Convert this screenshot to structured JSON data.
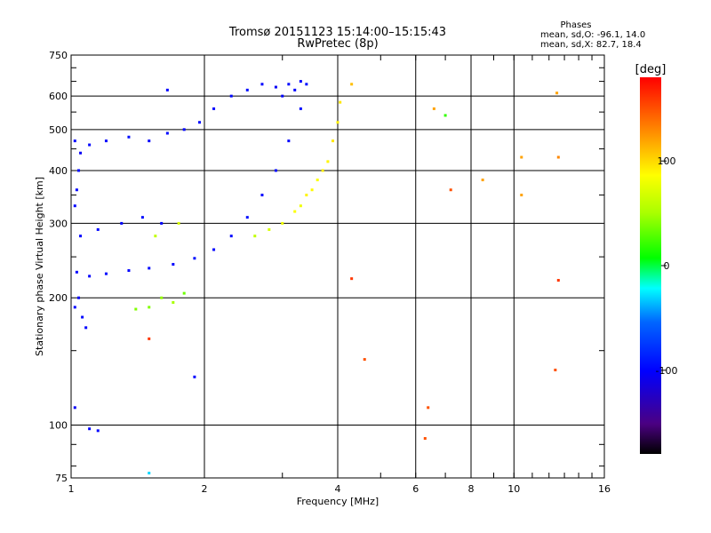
{
  "chart_data": {
    "type": "scatter",
    "title": "Tromsø 20151123 15:14:00–15:15:43",
    "subtitle": "RwPretec (8p)",
    "xlabel": "Frequency [MHz]",
    "ylabel": "Stationary phase Virtual Height [km]",
    "x_scale": "log",
    "y_scale": "log",
    "xlim": [
      1,
      16
    ],
    "ylim": [
      75,
      750
    ],
    "x_ticks": [
      1,
      2,
      4,
      6,
      8,
      10,
      16
    ],
    "y_ticks": [
      75,
      100,
      200,
      300,
      400,
      500,
      600,
      750
    ],
    "grid": true,
    "stats": {
      "heading": "Phases",
      "line_o": "mean, sd,O: -96.1, 14.0",
      "line_x": "mean, sd,X:  82.7, 18.4"
    },
    "colorbar": {
      "label": "[deg]",
      "range": [
        -180,
        180
      ],
      "ticks": [
        100,
        0,
        -100
      ],
      "colormap": "rainbow"
    },
    "series": [
      {
        "values": [
          {
            "x": 1.02,
            "y": 470,
            "p": -100
          },
          {
            "x": 1.05,
            "y": 440,
            "p": -105
          },
          {
            "x": 1.1,
            "y": 460,
            "p": -98
          },
          {
            "x": 1.2,
            "y": 470,
            "p": -100
          },
          {
            "x": 1.35,
            "y": 480,
            "p": -95
          },
          {
            "x": 1.5,
            "y": 470,
            "p": -102
          },
          {
            "x": 1.65,
            "y": 490,
            "p": -98
          },
          {
            "x": 1.8,
            "y": 500,
            "p": -100
          },
          {
            "x": 1.95,
            "y": 520,
            "p": -96
          },
          {
            "x": 2.1,
            "y": 560,
            "p": -100
          },
          {
            "x": 2.3,
            "y": 600,
            "p": -98
          },
          {
            "x": 2.5,
            "y": 620,
            "p": -95
          },
          {
            "x": 2.7,
            "y": 640,
            "p": -100
          },
          {
            "x": 2.9,
            "y": 630,
            "p": -104
          },
          {
            "x": 3.1,
            "y": 640,
            "p": -98
          },
          {
            "x": 3.3,
            "y": 650,
            "p": -100
          },
          {
            "x": 1.03,
            "y": 230,
            "p": -100
          },
          {
            "x": 1.1,
            "y": 225,
            "p": -102
          },
          {
            "x": 1.2,
            "y": 228,
            "p": -98
          },
          {
            "x": 1.35,
            "y": 232,
            "p": -100
          },
          {
            "x": 1.5,
            "y": 235,
            "p": -97
          },
          {
            "x": 1.7,
            "y": 240,
            "p": -100
          },
          {
            "x": 1.9,
            "y": 248,
            "p": -95
          },
          {
            "x": 2.1,
            "y": 260,
            "p": -100
          },
          {
            "x": 2.3,
            "y": 280,
            "p": -98
          },
          {
            "x": 2.5,
            "y": 310,
            "p": -95
          },
          {
            "x": 2.7,
            "y": 350,
            "p": -100
          },
          {
            "x": 2.9,
            "y": 400,
            "p": -98
          },
          {
            "x": 3.1,
            "y": 470,
            "p": -100
          },
          {
            "x": 3.3,
            "y": 560,
            "p": -97
          },
          {
            "x": 1.05,
            "y": 280,
            "p": -100
          },
          {
            "x": 1.15,
            "y": 290,
            "p": -98
          },
          {
            "x": 1.3,
            "y": 300,
            "p": -100
          },
          {
            "x": 1.45,
            "y": 310,
            "p": -96
          },
          {
            "x": 1.6,
            "y": 300,
            "p": -100
          },
          {
            "x": 1.02,
            "y": 190,
            "p": -100
          },
          {
            "x": 1.04,
            "y": 200,
            "p": -105
          },
          {
            "x": 1.06,
            "y": 180,
            "p": -98
          },
          {
            "x": 1.08,
            "y": 170,
            "p": -100
          },
          {
            "x": 1.02,
            "y": 330,
            "p": -100
          },
          {
            "x": 1.03,
            "y": 360,
            "p": -100
          },
          {
            "x": 1.04,
            "y": 400,
            "p": -98
          },
          {
            "x": 1.02,
            "y": 110,
            "p": -105
          },
          {
            "x": 1.1,
            "y": 98,
            "p": -100
          },
          {
            "x": 1.15,
            "y": 97,
            "p": -100
          },
          {
            "x": 1.5,
            "y": 77,
            "p": -30
          },
          {
            "x": 1.9,
            "y": 130,
            "p": -100
          },
          {
            "x": 1.65,
            "y": 620,
            "p": -100
          },
          {
            "x": 3.0,
            "y": 600,
            "p": -100
          },
          {
            "x": 3.2,
            "y": 620,
            "p": -100
          },
          {
            "x": 3.4,
            "y": 640,
            "p": -95
          }
        ]
      },
      {
        "values": [
          {
            "x": 2.6,
            "y": 280,
            "p": 60
          },
          {
            "x": 2.8,
            "y": 290,
            "p": 70
          },
          {
            "x": 3.0,
            "y": 300,
            "p": 80
          },
          {
            "x": 3.2,
            "y": 320,
            "p": 85
          },
          {
            "x": 3.4,
            "y": 350,
            "p": 90
          },
          {
            "x": 3.6,
            "y": 380,
            "p": 85
          },
          {
            "x": 3.8,
            "y": 420,
            "p": 90
          },
          {
            "x": 3.9,
            "y": 470,
            "p": 95
          },
          {
            "x": 4.0,
            "y": 520,
            "p": 92
          },
          {
            "x": 4.05,
            "y": 580,
            "p": 95
          },
          {
            "x": 3.3,
            "y": 330,
            "p": 80
          },
          {
            "x": 3.5,
            "y": 360,
            "p": 88
          },
          {
            "x": 3.7,
            "y": 400,
            "p": 92
          },
          {
            "x": 1.5,
            "y": 190,
            "p": 40
          },
          {
            "x": 1.6,
            "y": 200,
            "p": 45
          },
          {
            "x": 1.7,
            "y": 195,
            "p": 50
          },
          {
            "x": 1.8,
            "y": 205,
            "p": 35
          },
          {
            "x": 1.4,
            "y": 188,
            "p": 40
          },
          {
            "x": 1.55,
            "y": 280,
            "p": 60
          },
          {
            "x": 1.75,
            "y": 300,
            "p": 70
          },
          {
            "x": 4.3,
            "y": 640,
            "p": 110
          },
          {
            "x": 6.6,
            "y": 560,
            "p": 120
          },
          {
            "x": 7.0,
            "y": 540,
            "p": 20
          },
          {
            "x": 8.5,
            "y": 380,
            "p": 120
          },
          {
            "x": 10.4,
            "y": 430,
            "p": 120
          },
          {
            "x": 12.5,
            "y": 610,
            "p": 120
          },
          {
            "x": 12.6,
            "y": 430,
            "p": 130
          },
          {
            "x": 12.6,
            "y": 220,
            "p": 160
          },
          {
            "x": 12.4,
            "y": 135,
            "p": 150
          },
          {
            "x": 10.4,
            "y": 350,
            "p": 120
          },
          {
            "x": 7.2,
            "y": 360,
            "p": 150
          },
          {
            "x": 6.4,
            "y": 110,
            "p": 150
          },
          {
            "x": 6.3,
            "y": 93,
            "p": 150
          },
          {
            "x": 4.6,
            "y": 143,
            "p": 150
          },
          {
            "x": 4.3,
            "y": 222,
            "p": 160
          },
          {
            "x": 1.5,
            "y": 160,
            "p": 160
          }
        ]
      }
    ]
  }
}
